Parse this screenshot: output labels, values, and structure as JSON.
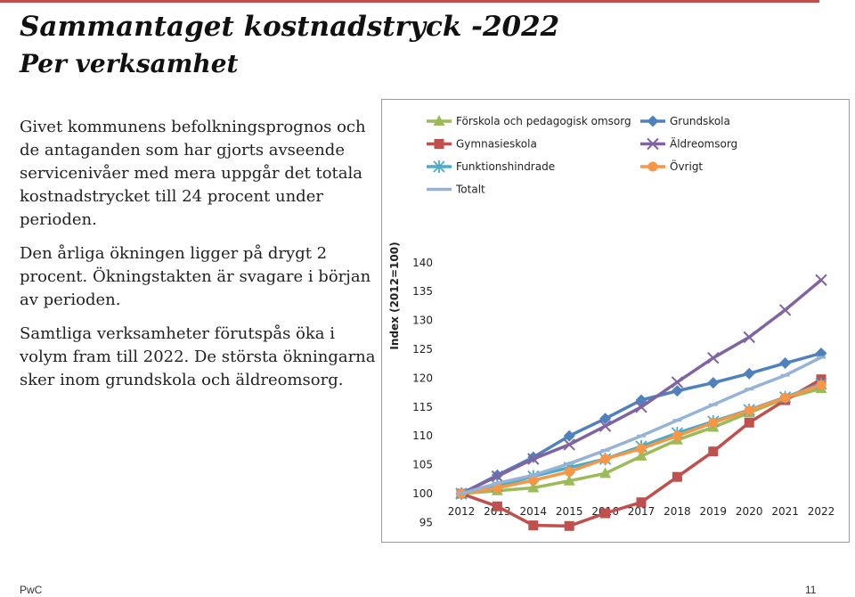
{
  "page": {
    "title": "Sammantaget kostnadstryck -2022",
    "subtitle": "Per verksamhet",
    "paragraphs": [
      "Givet kommunens befolkningsprognos och de antaganden som har gjorts avseende servicenivåer med mera uppgår det totala kostnadstrycket till 24 procent under perioden.",
      "Den årliga ökningen ligger på drygt 2 procent. Ökningstakten är svagare i början av perioden.",
      "Samtliga verksamheter förutspås öka i volym fram till 2022. De största ökningarna sker inom grundskola och äldreomsorg."
    ],
    "footer_left": "PwC",
    "footer_right": "11",
    "accent_color": "#c0504d"
  },
  "chart_data": {
    "type": "line",
    "title": "",
    "xlabel": "",
    "ylabel": "Index (2012=100)",
    "categories": [
      "2012",
      "2013",
      "2014",
      "2015",
      "2016",
      "2017",
      "2018",
      "2019",
      "2020",
      "2021",
      "2022"
    ],
    "ylim": [
      90,
      140
    ],
    "yticks": [
      90,
      95,
      100,
      105,
      110,
      115,
      120,
      125,
      130,
      135,
      140
    ],
    "grid": false,
    "legend_position": "top",
    "series": [
      {
        "name": "Förskola och pedagogisk omsorg",
        "color": "#9bbb59",
        "marker": "triangle",
        "values": [
          100,
          100.5,
          101,
          102.2,
          103.5,
          106.5,
          109.3,
          111.5,
          114,
          116.5,
          118.2
        ]
      },
      {
        "name": "Grundskola",
        "color": "#4f81bd",
        "marker": "diamond",
        "values": [
          100,
          103.2,
          106.3,
          110,
          113,
          116.2,
          117.8,
          119.2,
          120.8,
          122.6,
          124.3
        ]
      },
      {
        "name": "Gymnasieskola",
        "color": "#c0504d",
        "marker": "square",
        "values": [
          100,
          97.8,
          94.5,
          94.4,
          96.6,
          98.5,
          102.9,
          107.3,
          112.3,
          116.2,
          119.8
        ]
      },
      {
        "name": "Äldreomsorg",
        "color": "#8064a2",
        "marker": "x",
        "values": [
          100,
          103,
          106,
          108.5,
          111.7,
          115,
          119.3,
          123.5,
          127.1,
          131.8,
          137
        ]
      },
      {
        "name": "Funktionshindrade",
        "color": "#4bacc6",
        "marker": "star",
        "values": [
          100,
          101.3,
          103,
          104.5,
          106,
          108.2,
          110.5,
          112.5,
          114.5,
          116.7,
          119
        ]
      },
      {
        "name": "Övrigt",
        "color": "#f79646",
        "marker": "circle",
        "values": [
          100,
          101,
          102.3,
          103.8,
          106,
          107.8,
          110,
          112.3,
          114.4,
          116.6,
          118.8
        ]
      },
      {
        "name": "Totalt",
        "color": "#95b3d7",
        "marker": "dash",
        "values": [
          100,
          101.8,
          103.2,
          105.2,
          107.5,
          110,
          112.7,
          115.4,
          118.1,
          120.5,
          123.6
        ]
      }
    ]
  }
}
